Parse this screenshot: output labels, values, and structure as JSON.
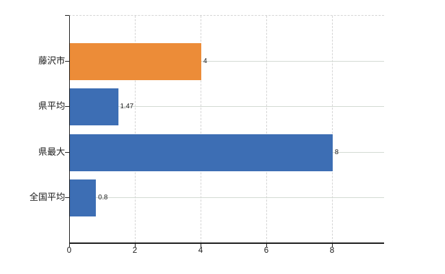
{
  "chart_data": {
    "type": "bar",
    "orientation": "horizontal",
    "title": "",
    "xlabel": "",
    "ylabel": "",
    "categories": [
      "藤沢市",
      "県平均",
      "県最大",
      "全国平均"
    ],
    "values": [
      4,
      1.47,
      8,
      0.8
    ],
    "value_labels": [
      "4",
      "1.47",
      "8",
      "0.8"
    ],
    "bar_colors": [
      "#ec8c38",
      "#3d6eb4",
      "#3d6eb4",
      "#3d6eb4"
    ],
    "xlim": [
      0,
      9.56
    ],
    "x_ticks": [
      0,
      2,
      4,
      6,
      8
    ],
    "x_tick_labels": [
      "0",
      "2",
      "4",
      "6",
      "8"
    ],
    "grid": true,
    "legend": false,
    "colors": {
      "axis": "#1a1a1a",
      "vertical_gridline": "#d3d3d3",
      "horizontal_gridline": "#d2d9d2",
      "orange_bar": "#ec8c38",
      "blue_bar": "#3d6eb4",
      "background": "#ffffff"
    }
  }
}
